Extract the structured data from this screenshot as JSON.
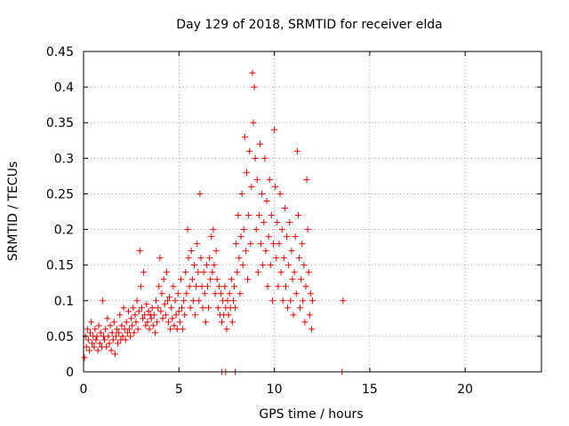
{
  "chart_data": {
    "type": "scatter",
    "title": "Day 129 of 2018, SRMTID for receiver elda",
    "xlabel": "GPS time / hours",
    "ylabel": "SRMTID / TECUs",
    "xlim": [
      0,
      24
    ],
    "ylim": [
      0,
      0.45
    ],
    "xticks": [
      0,
      5,
      10,
      15,
      20
    ],
    "xtick_labels": [
      "0",
      "5",
      "10",
      "15",
      "20"
    ],
    "yticks": [
      0,
      0.05,
      0.1,
      0.15,
      0.2,
      0.25,
      0.3,
      0.35,
      0.4,
      0.45
    ],
    "ytick_labels": [
      "0",
      "0.05",
      "0.1",
      "0.15",
      "0.2",
      "0.25",
      "0.3",
      "0.35",
      "0.4",
      "0.45"
    ],
    "grid": true,
    "marker": "+",
    "color": "#e00000",
    "series": [
      {
        "name": "SRMTID",
        "points": [
          [
            0.05,
            0.02
          ],
          [
            0.1,
            0.05
          ],
          [
            0.15,
            0.035
          ],
          [
            0.2,
            0.06
          ],
          [
            0.25,
            0.045
          ],
          [
            0.3,
            0.03
          ],
          [
            0.35,
            0.055
          ],
          [
            0.4,
            0.07
          ],
          [
            0.45,
            0.04
          ],
          [
            0.5,
            0.05
          ],
          [
            0.55,
            0.035
          ],
          [
            0.6,
            0.06
          ],
          [
            0.65,
            0.045
          ],
          [
            0.7,
            0.05
          ],
          [
            0.75,
            0.03
          ],
          [
            0.8,
            0.065
          ],
          [
            0.85,
            0.04
          ],
          [
            0.9,
            0.055
          ],
          [
            0.95,
            0.035
          ],
          [
            1.0,
            0.1
          ],
          [
            1.05,
            0.05
          ],
          [
            1.1,
            0.045
          ],
          [
            1.15,
            0.06
          ],
          [
            1.2,
            0.035
          ],
          [
            1.25,
            0.075
          ],
          [
            1.3,
            0.05
          ],
          [
            1.35,
            0.04
          ],
          [
            1.4,
            0.065
          ],
          [
            1.45,
            0.03
          ],
          [
            1.5,
            0.055
          ],
          [
            1.55,
            0.045
          ],
          [
            1.6,
            0.07
          ],
          [
            1.65,
            0.025
          ],
          [
            1.7,
            0.05
          ],
          [
            1.75,
            0.06
          ],
          [
            1.8,
            0.04
          ],
          [
            1.85,
            0.055
          ],
          [
            1.9,
            0.08
          ],
          [
            1.95,
            0.045
          ],
          [
            2.0,
            0.065
          ],
          [
            2.05,
            0.05
          ],
          [
            2.1,
            0.09
          ],
          [
            2.15,
            0.06
          ],
          [
            2.2,
            0.045
          ],
          [
            2.25,
            0.07
          ],
          [
            2.3,
            0.055
          ],
          [
            2.35,
            0.085
          ],
          [
            2.4,
            0.06
          ],
          [
            2.45,
            0.05
          ],
          [
            2.5,
            0.075
          ],
          [
            2.55,
            0.065
          ],
          [
            2.6,
            0.09
          ],
          [
            2.65,
            0.055
          ],
          [
            2.7,
            0.08
          ],
          [
            2.75,
            0.07
          ],
          [
            2.8,
            0.1
          ],
          [
            2.85,
            0.06
          ],
          [
            2.9,
            0.085
          ],
          [
            2.95,
            0.17
          ],
          [
            3.0,
            0.12
          ],
          [
            3.05,
            0.09
          ],
          [
            3.1,
            0.075
          ],
          [
            3.15,
            0.14
          ],
          [
            3.2,
            0.08
          ],
          [
            3.25,
            0.065
          ],
          [
            3.3,
            0.095
          ],
          [
            3.35,
            0.07
          ],
          [
            3.4,
            0.085
          ],
          [
            3.45,
            0.06
          ],
          [
            3.5,
            0.08
          ],
          [
            3.55,
            0.075
          ],
          [
            3.6,
            0.09
          ],
          [
            3.65,
            0.065
          ],
          [
            3.7,
            0.08
          ],
          [
            3.75,
            0.055
          ],
          [
            3.8,
            0.1
          ],
          [
            3.85,
            0.07
          ],
          [
            3.9,
            0.09
          ],
          [
            3.95,
            0.12
          ],
          [
            4.0,
            0.16
          ],
          [
            4.05,
            0.085
          ],
          [
            4.1,
            0.11
          ],
          [
            4.15,
            0.075
          ],
          [
            4.2,
            0.13
          ],
          [
            4.25,
            0.095
          ],
          [
            4.3,
            0.08
          ],
          [
            4.35,
            0.14
          ],
          [
            4.4,
            0.1
          ],
          [
            4.45,
            0.07
          ],
          [
            4.5,
            0.105
          ],
          [
            4.55,
            0.06
          ],
          [
            4.6,
            0.09
          ],
          [
            4.65,
            0.075
          ],
          [
            4.7,
            0.12
          ],
          [
            4.75,
            0.065
          ],
          [
            4.8,
            0.1
          ],
          [
            4.85,
            0.08
          ],
          [
            4.9,
            0.06
          ],
          [
            4.95,
            0.11
          ],
          [
            5.0,
            0.085
          ],
          [
            5.05,
            0.07
          ],
          [
            5.1,
            0.13
          ],
          [
            5.15,
            0.09
          ],
          [
            5.2,
            0.06
          ],
          [
            5.25,
            0.1
          ],
          [
            5.3,
            0.08
          ],
          [
            5.35,
            0.14
          ],
          [
            5.4,
            0.11
          ],
          [
            5.45,
            0.2
          ],
          [
            5.5,
            0.16
          ],
          [
            5.55,
            0.12
          ],
          [
            5.6,
            0.09
          ],
          [
            5.65,
            0.17
          ],
          [
            5.7,
            0.13
          ],
          [
            5.75,
            0.1
          ],
          [
            5.8,
            0.15
          ],
          [
            5.85,
            0.08
          ],
          [
            5.9,
            0.12
          ],
          [
            5.95,
            0.18
          ],
          [
            6.0,
            0.14
          ],
          [
            6.05,
            0.1
          ],
          [
            6.1,
            0.25
          ],
          [
            6.15,
            0.16
          ],
          [
            6.2,
            0.12
          ],
          [
            6.25,
            0.09
          ],
          [
            6.3,
            0.14
          ],
          [
            6.35,
            0.11
          ],
          [
            6.4,
            0.07
          ],
          [
            6.45,
            0.15
          ],
          [
            6.5,
            0.12
          ],
          [
            6.55,
            0.09
          ],
          [
            6.6,
            0.16
          ],
          [
            6.65,
            0.13
          ],
          [
            6.7,
            0.19
          ],
          [
            6.75,
            0.14
          ],
          [
            6.8,
            0.2
          ],
          [
            6.85,
            0.15
          ],
          [
            6.9,
            0.11
          ],
          [
            6.95,
            0.17
          ],
          [
            7.0,
            0.13
          ],
          [
            7.05,
            0.09
          ],
          [
            7.1,
            0.12
          ],
          [
            7.15,
            0.08
          ],
          [
            7.2,
            0.11
          ],
          [
            7.25,
            0.07
          ],
          [
            7.3,
            0.1
          ],
          [
            7.35,
            0.08
          ],
          [
            7.4,
            0.12
          ],
          [
            7.45,
            0.09
          ],
          [
            7.5,
            0.06
          ],
          [
            7.55,
            0.1
          ],
          [
            7.6,
            0.08
          ],
          [
            7.65,
            0.11
          ],
          [
            7.7,
            0.09
          ],
          [
            7.75,
            0.13
          ],
          [
            7.8,
            0.07
          ],
          [
            7.85,
            0.1
          ],
          [
            7.9,
            0.12
          ],
          [
            7.95,
            0.09
          ],
          [
            8.0,
            0.18
          ],
          [
            8.05,
            0.14
          ],
          [
            8.1,
            0.22
          ],
          [
            8.15,
            0.16
          ],
          [
            8.2,
            0.11
          ],
          [
            8.25,
            0.19
          ],
          [
            8.3,
            0.25
          ],
          [
            8.35,
            0.15
          ],
          [
            8.4,
            0.2
          ],
          [
            8.45,
            0.33
          ],
          [
            8.5,
            0.17
          ],
          [
            8.55,
            0.28
          ],
          [
            8.6,
            0.13
          ],
          [
            8.65,
            0.22
          ],
          [
            8.7,
            0.31
          ],
          [
            8.75,
            0.18
          ],
          [
            8.8,
            0.26
          ],
          [
            8.85,
            0.42
          ],
          [
            8.9,
            0.35
          ],
          [
            8.95,
            0.4
          ],
          [
            9.0,
            0.3
          ],
          [
            9.05,
            0.2
          ],
          [
            9.1,
            0.27
          ],
          [
            9.15,
            0.14
          ],
          [
            9.2,
            0.22
          ],
          [
            9.25,
            0.32
          ],
          [
            9.3,
            0.18
          ],
          [
            9.35,
            0.25
          ],
          [
            9.4,
            0.15
          ],
          [
            9.45,
            0.21
          ],
          [
            9.5,
            0.3
          ],
          [
            9.55,
            0.17
          ],
          [
            9.6,
            0.24
          ],
          [
            9.65,
            0.12
          ],
          [
            9.7,
            0.19
          ],
          [
            9.75,
            0.27
          ],
          [
            9.8,
            0.15
          ],
          [
            9.85,
            0.22
          ],
          [
            9.9,
            0.1
          ],
          [
            9.95,
            0.18
          ],
          [
            10.0,
            0.34
          ],
          [
            10.05,
            0.26
          ],
          [
            10.1,
            0.16
          ],
          [
            10.15,
            0.21
          ],
          [
            10.2,
            0.12
          ],
          [
            10.25,
            0.18
          ],
          [
            10.3,
            0.25
          ],
          [
            10.35,
            0.14
          ],
          [
            10.4,
            0.2
          ],
          [
            10.45,
            0.1
          ],
          [
            10.5,
            0.16
          ],
          [
            10.55,
            0.23
          ],
          [
            10.6,
            0.12
          ],
          [
            10.65,
            0.19
          ],
          [
            10.7,
            0.09
          ],
          [
            10.75,
            0.15
          ],
          [
            10.8,
            0.21
          ],
          [
            10.85,
            0.1
          ],
          [
            10.9,
            0.17
          ],
          [
            10.95,
            0.13
          ],
          [
            11.0,
            0.08
          ],
          [
            11.05,
            0.14
          ],
          [
            11.1,
            0.19
          ],
          [
            11.15,
            0.11
          ],
          [
            11.2,
            0.31
          ],
          [
            11.25,
            0.22
          ],
          [
            11.3,
            0.16
          ],
          [
            11.35,
            0.09
          ],
          [
            11.4,
            0.13
          ],
          [
            11.45,
            0.18
          ],
          [
            11.5,
            0.1
          ],
          [
            11.55,
            0.15
          ],
          [
            11.6,
            0.07
          ],
          [
            11.65,
            0.12
          ],
          [
            11.7,
            0.27
          ],
          [
            11.75,
            0.2
          ],
          [
            11.8,
            0.14
          ],
          [
            11.85,
            0.08
          ],
          [
            11.9,
            0.11
          ],
          [
            11.95,
            0.06
          ],
          [
            12.0,
            0.1
          ],
          [
            13.6,
            0.1
          ],
          [
            7.25,
            0.0
          ],
          [
            7.45,
            0.0
          ],
          [
            7.95,
            0.0
          ],
          [
            13.55,
            0.0
          ]
        ]
      }
    ]
  }
}
